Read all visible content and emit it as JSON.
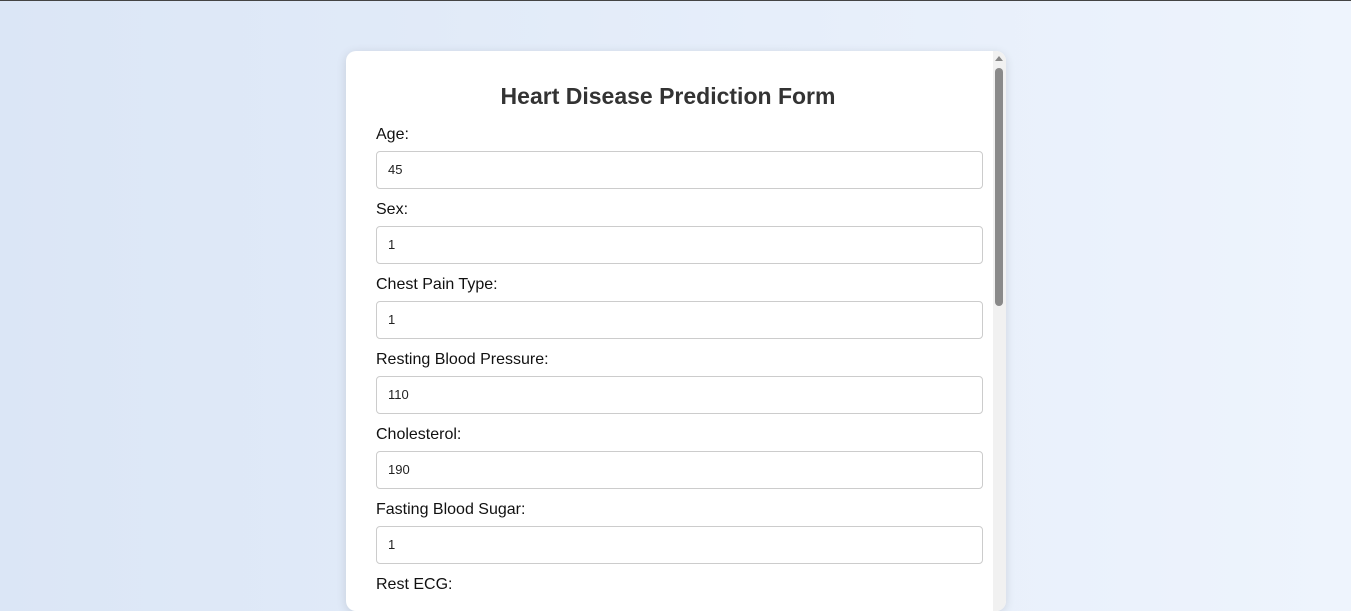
{
  "header": {
    "title": "Heart Disease Prediction Form"
  },
  "fields": [
    {
      "label": "Age:",
      "value": "45"
    },
    {
      "label": "Sex:",
      "value": "1"
    },
    {
      "label": "Chest Pain Type:",
      "value": "1"
    },
    {
      "label": "Resting Blood Pressure:",
      "value": "110"
    },
    {
      "label": "Cholesterol:",
      "value": "190"
    },
    {
      "label": "Fasting Blood Sugar:",
      "value": "1"
    },
    {
      "label": "Rest ECG:"
    }
  ]
}
